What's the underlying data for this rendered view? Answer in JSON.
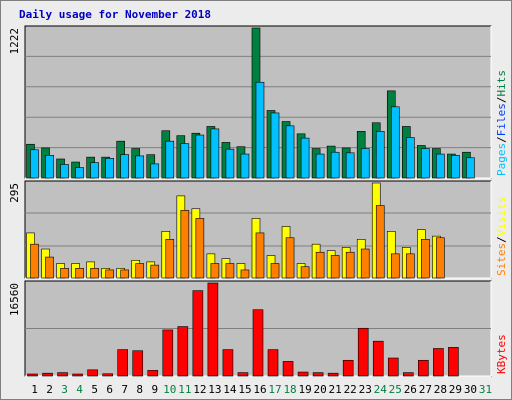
{
  "title": "Daily usage for November 2018",
  "colors": {
    "background": "#ececec",
    "panel": "#c0c0c0",
    "hits": "#008040",
    "files": "#00c0ff",
    "pages": "#0040ff",
    "visits": "#ffff00",
    "sites": "#ff8000",
    "kbytes": "#ff0000",
    "title": "#0000c0",
    "grid": "#808080",
    "weekend_label": "#008040",
    "weekday_label": "#000000"
  },
  "chart_data": [
    {
      "type": "bar",
      "name": "hits-files-pages",
      "ymax_label": "1222",
      "ylim": [
        0,
        1222
      ],
      "legend": [
        "Pages",
        "Files",
        "Hits"
      ],
      "legend_colors": [
        "#00c0ff",
        "#0040ff",
        "#008040"
      ],
      "categories": [
        "1",
        "2",
        "3",
        "4",
        "5",
        "6",
        "7",
        "8",
        "9",
        "10",
        "11",
        "12",
        "13",
        "14",
        "15",
        "16",
        "17",
        "18",
        "19",
        "20",
        "21",
        "22",
        "23",
        "24",
        "25",
        "26",
        "27",
        "28",
        "29",
        "30",
        "31"
      ],
      "series": [
        {
          "name": "Hits",
          "values": [
            275,
            245,
            155,
            130,
            170,
            170,
            300,
            240,
            190,
            385,
            345,
            365,
            420,
            290,
            255,
            1222,
            550,
            460,
            360,
            240,
            260,
            245,
            380,
            450,
            710,
            420,
            265,
            240,
            195,
            210,
            0
          ]
        },
        {
          "name": "Files",
          "values": [
            230,
            185,
            110,
            85,
            125,
            160,
            190,
            180,
            115,
            300,
            280,
            350,
            400,
            235,
            195,
            780,
            530,
            425,
            325,
            195,
            210,
            205,
            240,
            380,
            580,
            330,
            240,
            195,
            185,
            165,
            0
          ]
        },
        {
          "name": "Pages",
          "values": [
            230,
            185,
            110,
            85,
            125,
            160,
            190,
            180,
            115,
            300,
            280,
            350,
            400,
            235,
            195,
            640,
            530,
            425,
            325,
            195,
            210,
            205,
            240,
            380,
            580,
            330,
            240,
            195,
            185,
            165,
            0
          ]
        }
      ]
    },
    {
      "type": "bar",
      "name": "visits-sites",
      "ymax_label": "295",
      "ylim": [
        0,
        295
      ],
      "legend": [
        "Sites",
        "Visits"
      ],
      "legend_colors": [
        "#ff8000",
        "#ffff00"
      ],
      "categories": [
        "1",
        "2",
        "3",
        "4",
        "5",
        "6",
        "7",
        "8",
        "9",
        "10",
        "11",
        "12",
        "13",
        "14",
        "15",
        "16",
        "17",
        "18",
        "19",
        "20",
        "21",
        "22",
        "23",
        "24",
        "25",
        "26",
        "27",
        "28",
        "29",
        "30",
        "31"
      ],
      "series": [
        {
          "name": "Visits",
          "values": [
            140,
            90,
            45,
            45,
            50,
            30,
            30,
            55,
            50,
            145,
            255,
            215,
            75,
            60,
            45,
            185,
            70,
            160,
            45,
            105,
            85,
            95,
            120,
            295,
            145,
            95,
            150,
            130,
            0,
            0,
            0
          ]
        },
        {
          "name": "Sites",
          "values": [
            105,
            65,
            30,
            30,
            30,
            25,
            25,
            45,
            40,
            120,
            210,
            185,
            45,
            45,
            25,
            140,
            45,
            125,
            35,
            80,
            70,
            80,
            90,
            225,
            75,
            75,
            120,
            125,
            0,
            0,
            0
          ]
        }
      ]
    },
    {
      "type": "bar",
      "name": "kbytes",
      "ymax_label": "16560",
      "ylim": [
        0,
        16560
      ],
      "legend": [
        "KBytes"
      ],
      "legend_colors": [
        "#ff0000"
      ],
      "categories": [
        "1",
        "2",
        "3",
        "4",
        "5",
        "6",
        "7",
        "8",
        "9",
        "10",
        "11",
        "12",
        "13",
        "14",
        "15",
        "16",
        "17",
        "18",
        "19",
        "20",
        "21",
        "22",
        "23",
        "24",
        "25",
        "26",
        "27",
        "28",
        "29",
        "30",
        "31"
      ],
      "series": [
        {
          "name": "KBytes",
          "values": [
            300,
            500,
            600,
            300,
            1100,
            400,
            4700,
            4500,
            1000,
            8200,
            8800,
            15200,
            16560,
            4700,
            600,
            11800,
            4700,
            2600,
            700,
            600,
            500,
            2800,
            8500,
            6200,
            3200,
            600,
            2800,
            4900,
            5100,
            0,
            0
          ]
        }
      ]
    }
  ],
  "x_axis": {
    "labels": [
      "1",
      "2",
      "3",
      "4",
      "5",
      "6",
      "7",
      "8",
      "9",
      "10",
      "11",
      "12",
      "13",
      "14",
      "15",
      "16",
      "17",
      "18",
      "19",
      "20",
      "21",
      "22",
      "23",
      "24",
      "25",
      "26",
      "27",
      "28",
      "29",
      "30",
      "31"
    ],
    "weekend_days": [
      3,
      4,
      10,
      11,
      17,
      18,
      24,
      25,
      31
    ]
  }
}
